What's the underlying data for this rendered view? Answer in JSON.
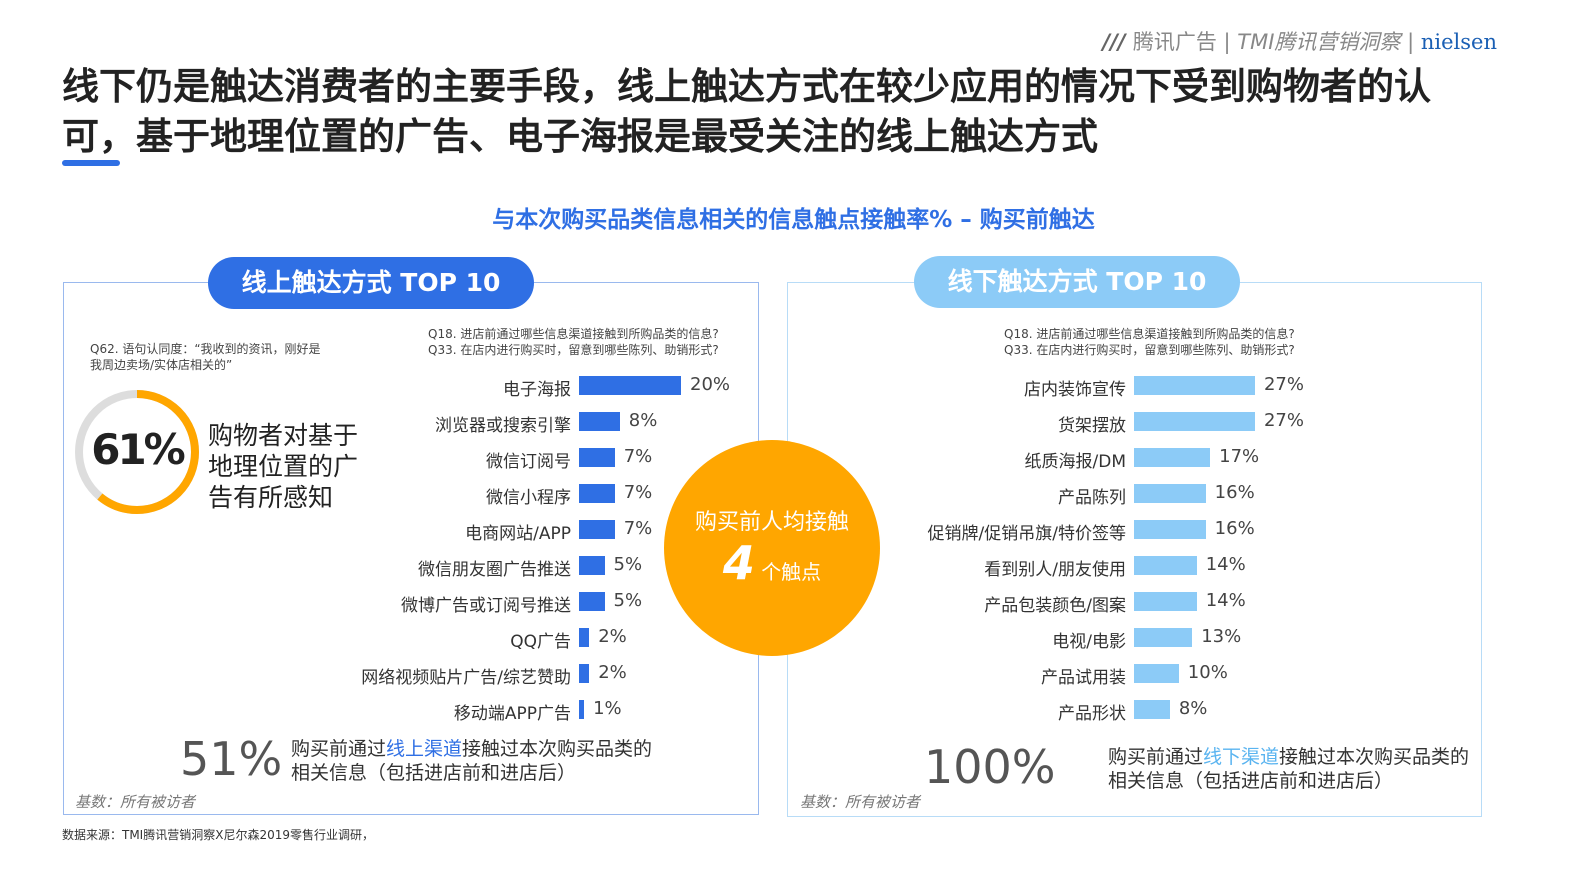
{
  "logo": {
    "brand1": "腾讯广告",
    "brand2": "TMI腾讯营销洞察",
    "brand3": "nielsen"
  },
  "title": "线下仍是触达消费者的主要手段，线上触达方式在较少应用的情况下受到购物者的认可，基于地理位置的广告、电子海报是最受关注的线上触达方式",
  "subtitle": "与本次购买品类信息相关的信息触点接触率% – 购买前触达",
  "colors": {
    "online": "#2f6fe4",
    "offline": "#8ccbf7",
    "accent": "#ffa600"
  },
  "left": {
    "pill": "线上触达方式 TOP 10",
    "q62": "Q62. 语句认同度：“我收到的资讯，刚好是我周边卖场/实体店相关的”",
    "q18": "Q18. 进店前通过哪些信息渠道接触到所购品类的信息?",
    "q33": "Q33. 在店内进行购买时，留意到哪些陈列、助销形式?",
    "ring_value": 61,
    "ring_label": "61%",
    "ring_text": "购物者对基于地理位置的广告有所感知",
    "big": "51%",
    "desc_pre": "购买前通过",
    "desc_hl": "线上渠道",
    "desc_post": "接触过本次购买品类的相关信息（包括进店前和进店后）",
    "base": "基数：所有被访者"
  },
  "center": {
    "line1": "购买前人均接触",
    "num": "4",
    "line2": "个触点"
  },
  "right": {
    "pill": "线下触达方式 TOP 10",
    "q18": "Q18. 进店前通过哪些信息渠道接触到所购品类的信息?",
    "q33": "Q33. 在店内进行购买时，留意到哪些陈列、助销形式?",
    "big": "100%",
    "desc_pre": "购买前通过",
    "desc_hl": "线下渠道",
    "desc_post": "接触过本次购买品类的相关信息（包括进店前和进店后）",
    "base": "基数：所有被访者"
  },
  "chart_data": [
    {
      "type": "bar",
      "orientation": "horizontal",
      "categories": [
        "电子海报",
        "浏览器或搜索引擎",
        "微信订阅号",
        "微信小程序",
        "电商网站/APP",
        "微信朋友圈广告推送",
        "微博广告或订阅号推送",
        "QQ广告",
        "网络视频贴片广告/综艺赞助",
        "移动端APP广告"
      ],
      "values": [
        20,
        8,
        7,
        7,
        7,
        5,
        5,
        2,
        2,
        1
      ],
      "unit": "%"
    },
    {
      "type": "bar",
      "orientation": "horizontal",
      "categories": [
        "店内装饰宣传",
        "货架摆放",
        "纸质海报/DM",
        "产品陈列",
        "促销牌/促销吊旗/特价签等",
        "看到别人/朋友使用",
        "产品包装颜色/图案",
        "电视/电影",
        "产品试用装",
        "产品形状"
      ],
      "values": [
        27,
        27,
        17,
        16,
        16,
        14,
        14,
        13,
        10,
        8
      ],
      "unit": "%"
    }
  ],
  "footnote": "数据来源：TMI腾讯营销洞察X尼尔森2019零售行业调研，"
}
